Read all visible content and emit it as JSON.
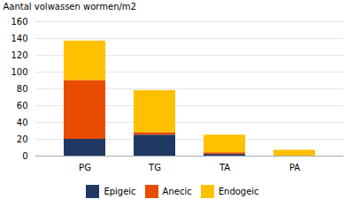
{
  "chart_data": {
    "type": "bar",
    "stacked": true,
    "categories": [
      "PG",
      "TG",
      "TA",
      "PA"
    ],
    "series": [
      {
        "name": "Epigeic",
        "color": "#1f3864",
        "values": [
          20,
          25,
          2,
          0
        ]
      },
      {
        "name": "Anecic",
        "color": "#e84c00",
        "values": [
          70,
          3,
          2,
          0
        ]
      },
      {
        "name": "Endogeic",
        "color": "#ffc000",
        "values": [
          47,
          50,
          21,
          7
        ]
      }
    ],
    "ylabel": "Aantal volwassen wormen/m2",
    "ylim": [
      0,
      160
    ],
    "yticks": [
      0,
      20,
      40,
      60,
      80,
      100,
      120,
      140,
      160
    ],
    "grid": true,
    "legend": "bottom"
  }
}
